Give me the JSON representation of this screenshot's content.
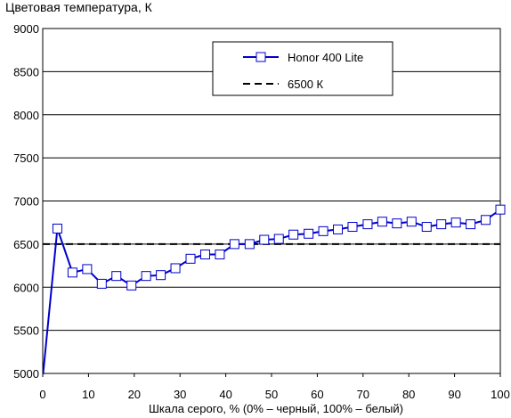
{
  "chart_data": {
    "type": "line",
    "title": "Цветовая температура, К",
    "xlabel": "Шкала серого, % (0% – черный, 100% – белый)",
    "ylabel": "",
    "xlim": [
      0,
      100
    ],
    "ylim": [
      5000,
      9000
    ],
    "xticks": [
      0,
      10,
      20,
      30,
      40,
      50,
      60,
      70,
      80,
      90,
      100
    ],
    "yticks": [
      5000,
      5500,
      6000,
      6500,
      7000,
      7500,
      8000,
      8500,
      9000
    ],
    "grid": "horizontal",
    "legend_position": "top-right",
    "series": [
      {
        "name": "Honor 400 Lite",
        "color": "#0000cc",
        "marker": "square",
        "x": [
          0,
          3.2,
          6.5,
          9.7,
          12.9,
          16.1,
          19.4,
          22.6,
          25.8,
          29.0,
          32.3,
          35.5,
          38.7,
          41.9,
          45.2,
          48.4,
          51.6,
          54.8,
          58.1,
          61.3,
          64.5,
          67.7,
          71.0,
          74.2,
          77.4,
          80.6,
          83.9,
          87.1,
          90.3,
          93.5,
          96.8,
          100
        ],
        "y": [
          4950,
          6680,
          6170,
          6210,
          6040,
          6130,
          6020,
          6130,
          6140,
          6220,
          6330,
          6380,
          6380,
          6500,
          6500,
          6550,
          6560,
          6610,
          6620,
          6650,
          6670,
          6700,
          6730,
          6760,
          6740,
          6760,
          6700,
          6730,
          6750,
          6730,
          6780,
          6900
        ]
      },
      {
        "name": "6500 К",
        "color": "#000000",
        "style": "dashed",
        "x": [
          0,
          100
        ],
        "y": [
          6500,
          6500
        ]
      }
    ]
  }
}
